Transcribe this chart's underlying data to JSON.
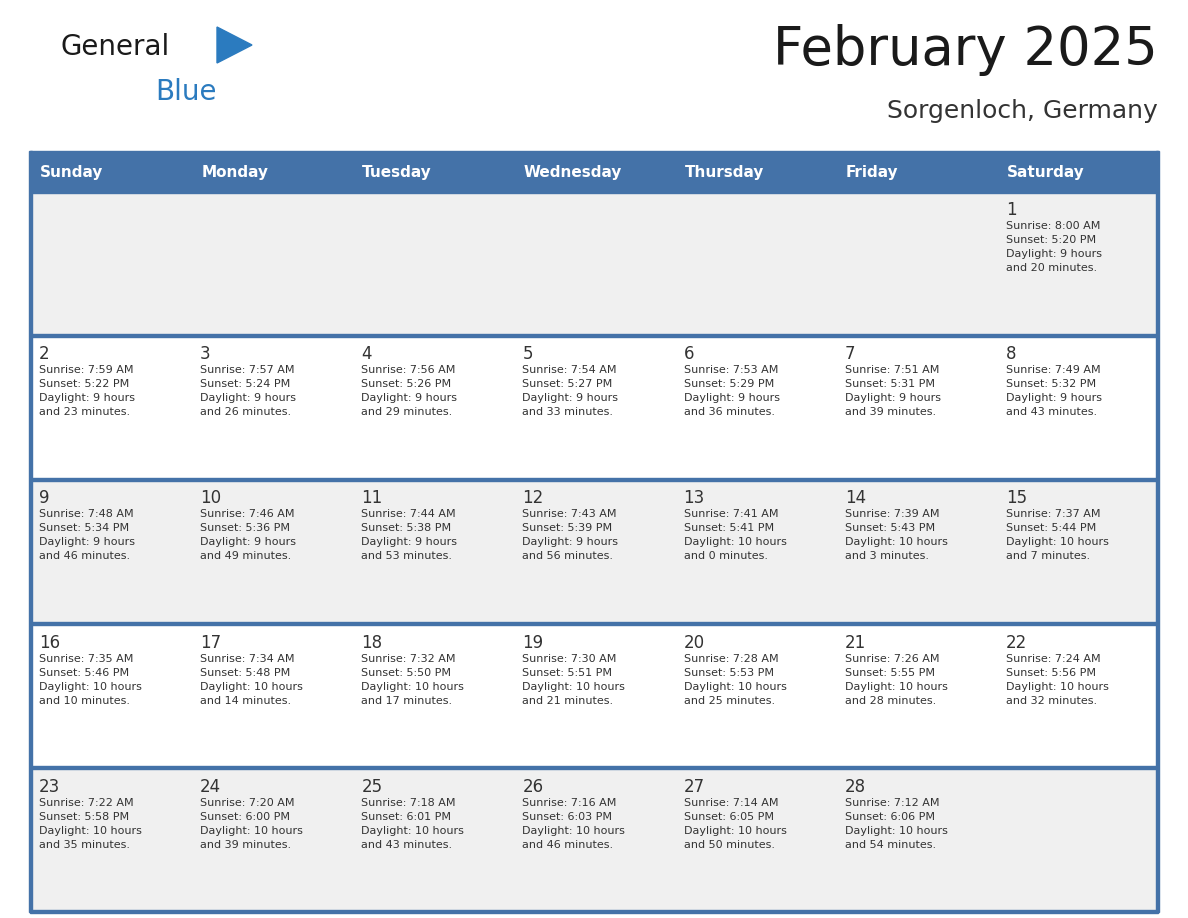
{
  "title": "February 2025",
  "subtitle": "Sorgenloch, Germany",
  "header_bg": "#4472a8",
  "header_text": "#ffffff",
  "row_bg_alt": "#f0f0f0",
  "row_bg_white": "#ffffff",
  "border_color": "#4472a8",
  "day_headers": [
    "Sunday",
    "Monday",
    "Tuesday",
    "Wednesday",
    "Thursday",
    "Friday",
    "Saturday"
  ],
  "title_color": "#1a1a1a",
  "subtitle_color": "#333333",
  "cell_text_color": "#333333",
  "day_num_color": "#333333",
  "logo_text_color": "#1a1a1a",
  "logo_blue_color": "#2b7bbf",
  "calendar": [
    [
      {
        "day": "",
        "info": ""
      },
      {
        "day": "",
        "info": ""
      },
      {
        "day": "",
        "info": ""
      },
      {
        "day": "",
        "info": ""
      },
      {
        "day": "",
        "info": ""
      },
      {
        "day": "",
        "info": ""
      },
      {
        "day": "1",
        "info": "Sunrise: 8:00 AM\nSunset: 5:20 PM\nDaylight: 9 hours\nand 20 minutes."
      }
    ],
    [
      {
        "day": "2",
        "info": "Sunrise: 7:59 AM\nSunset: 5:22 PM\nDaylight: 9 hours\nand 23 minutes."
      },
      {
        "day": "3",
        "info": "Sunrise: 7:57 AM\nSunset: 5:24 PM\nDaylight: 9 hours\nand 26 minutes."
      },
      {
        "day": "4",
        "info": "Sunrise: 7:56 AM\nSunset: 5:26 PM\nDaylight: 9 hours\nand 29 minutes."
      },
      {
        "day": "5",
        "info": "Sunrise: 7:54 AM\nSunset: 5:27 PM\nDaylight: 9 hours\nand 33 minutes."
      },
      {
        "day": "6",
        "info": "Sunrise: 7:53 AM\nSunset: 5:29 PM\nDaylight: 9 hours\nand 36 minutes."
      },
      {
        "day": "7",
        "info": "Sunrise: 7:51 AM\nSunset: 5:31 PM\nDaylight: 9 hours\nand 39 minutes."
      },
      {
        "day": "8",
        "info": "Sunrise: 7:49 AM\nSunset: 5:32 PM\nDaylight: 9 hours\nand 43 minutes."
      }
    ],
    [
      {
        "day": "9",
        "info": "Sunrise: 7:48 AM\nSunset: 5:34 PM\nDaylight: 9 hours\nand 46 minutes."
      },
      {
        "day": "10",
        "info": "Sunrise: 7:46 AM\nSunset: 5:36 PM\nDaylight: 9 hours\nand 49 minutes."
      },
      {
        "day": "11",
        "info": "Sunrise: 7:44 AM\nSunset: 5:38 PM\nDaylight: 9 hours\nand 53 minutes."
      },
      {
        "day": "12",
        "info": "Sunrise: 7:43 AM\nSunset: 5:39 PM\nDaylight: 9 hours\nand 56 minutes."
      },
      {
        "day": "13",
        "info": "Sunrise: 7:41 AM\nSunset: 5:41 PM\nDaylight: 10 hours\nand 0 minutes."
      },
      {
        "day": "14",
        "info": "Sunrise: 7:39 AM\nSunset: 5:43 PM\nDaylight: 10 hours\nand 3 minutes."
      },
      {
        "day": "15",
        "info": "Sunrise: 7:37 AM\nSunset: 5:44 PM\nDaylight: 10 hours\nand 7 minutes."
      }
    ],
    [
      {
        "day": "16",
        "info": "Sunrise: 7:35 AM\nSunset: 5:46 PM\nDaylight: 10 hours\nand 10 minutes."
      },
      {
        "day": "17",
        "info": "Sunrise: 7:34 AM\nSunset: 5:48 PM\nDaylight: 10 hours\nand 14 minutes."
      },
      {
        "day": "18",
        "info": "Sunrise: 7:32 AM\nSunset: 5:50 PM\nDaylight: 10 hours\nand 17 minutes."
      },
      {
        "day": "19",
        "info": "Sunrise: 7:30 AM\nSunset: 5:51 PM\nDaylight: 10 hours\nand 21 minutes."
      },
      {
        "day": "20",
        "info": "Sunrise: 7:28 AM\nSunset: 5:53 PM\nDaylight: 10 hours\nand 25 minutes."
      },
      {
        "day": "21",
        "info": "Sunrise: 7:26 AM\nSunset: 5:55 PM\nDaylight: 10 hours\nand 28 minutes."
      },
      {
        "day": "22",
        "info": "Sunrise: 7:24 AM\nSunset: 5:56 PM\nDaylight: 10 hours\nand 32 minutes."
      }
    ],
    [
      {
        "day": "23",
        "info": "Sunrise: 7:22 AM\nSunset: 5:58 PM\nDaylight: 10 hours\nand 35 minutes."
      },
      {
        "day": "24",
        "info": "Sunrise: 7:20 AM\nSunset: 6:00 PM\nDaylight: 10 hours\nand 39 minutes."
      },
      {
        "day": "25",
        "info": "Sunrise: 7:18 AM\nSunset: 6:01 PM\nDaylight: 10 hours\nand 43 minutes."
      },
      {
        "day": "26",
        "info": "Sunrise: 7:16 AM\nSunset: 6:03 PM\nDaylight: 10 hours\nand 46 minutes."
      },
      {
        "day": "27",
        "info": "Sunrise: 7:14 AM\nSunset: 6:05 PM\nDaylight: 10 hours\nand 50 minutes."
      },
      {
        "day": "28",
        "info": "Sunrise: 7:12 AM\nSunset: 6:06 PM\nDaylight: 10 hours\nand 54 minutes."
      },
      {
        "day": "",
        "info": ""
      }
    ]
  ]
}
